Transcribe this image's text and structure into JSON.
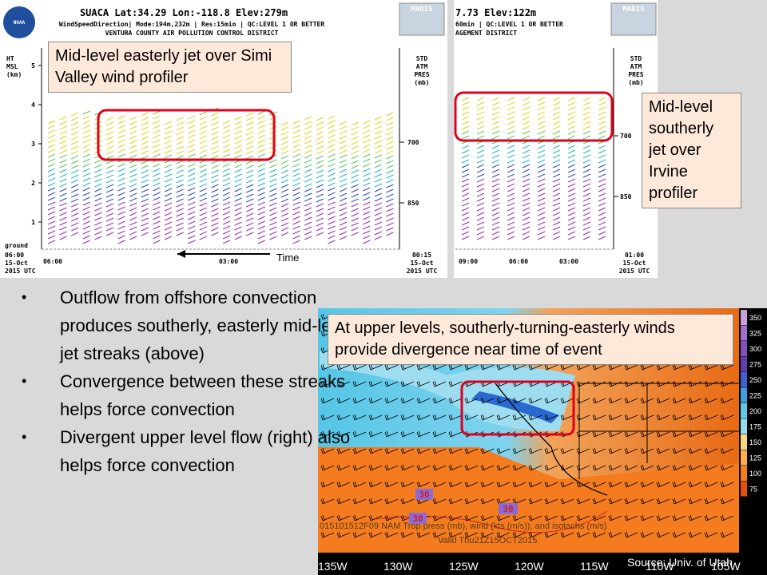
{
  "profiler_left": {
    "header": [
      "SUACA  Lat:34.29 Lon:-118.8 Elev:279m",
      "WindSpeedDirection| Mode:194m,232m | Res:15min | QC:LEVEL 1 OR BETTER",
      "VENTURA COUNTY AIR POLLUTION CONTROL DISTRICT"
    ],
    "left_axis_label": [
      "HT",
      "MSL",
      "(km)"
    ],
    "left_ticks": [
      "1",
      "2",
      "3",
      "4",
      "5"
    ],
    "right_axis_label": [
      "STD",
      "ATM",
      "PRES",
      "(mb)"
    ],
    "right_ticks": [
      "700",
      "850"
    ],
    "ground": "ground",
    "start_time": [
      "06:00",
      "15-Oct",
      "2015 UTC"
    ],
    "times": [
      "06:00",
      "03:00"
    ],
    "end_time": [
      "00:15",
      "15-Oct",
      "2015 UTC"
    ],
    "logo": "MADIS",
    "agency": "NOAA"
  },
  "time_arrow": "Time",
  "callout_left": "Mid-level easterly jet over Simi Valley wind profiler",
  "profiler_right": {
    "header": [
      "7.73 Elev:122m",
      "60min | QC:LEVEL 1 OR BETTER",
      "AGEMENT DISTRICT"
    ],
    "right_axis_label": [
      "STD",
      "ATM",
      "PRES",
      "(mb)"
    ],
    "right_ticks": [
      "700",
      "850"
    ],
    "times": [
      "09:00",
      "06:00",
      "03:00"
    ],
    "end_time": [
      "01:00",
      "15-Oct",
      "2015 UTC"
    ],
    "logo": "MADIS"
  },
  "callout_right": "Mid-level southerly jet over Irvine profiler",
  "bullets": [
    "Outflow from offshore convection produces southerly, easterly mid-level jet streaks (above)",
    "Convergence between these streaks helps force convection",
    "Divergent upper level flow (right) also helps force convection"
  ],
  "map": {
    "callout": "At upper levels, southerly-turning-easterly winds provide divergence near time of event",
    "colorbar": [
      "350",
      "325",
      "300",
      "275",
      "250",
      "225",
      "200",
      "175",
      "150",
      "125",
      "100",
      "75"
    ],
    "title": "015101512F09 NAM Trop press (mb), wind (kts (m/s)), and isotachs (m/s)",
    "valid": "Valid Thu21Z15OCT2015",
    "contour_labels": [
      "30",
      "30",
      "30"
    ],
    "longitudes": [
      "135W",
      "130W",
      "125W",
      "120W",
      "115W",
      "110W",
      "105W"
    ],
    "source": "Source: Univ. of Utah"
  }
}
